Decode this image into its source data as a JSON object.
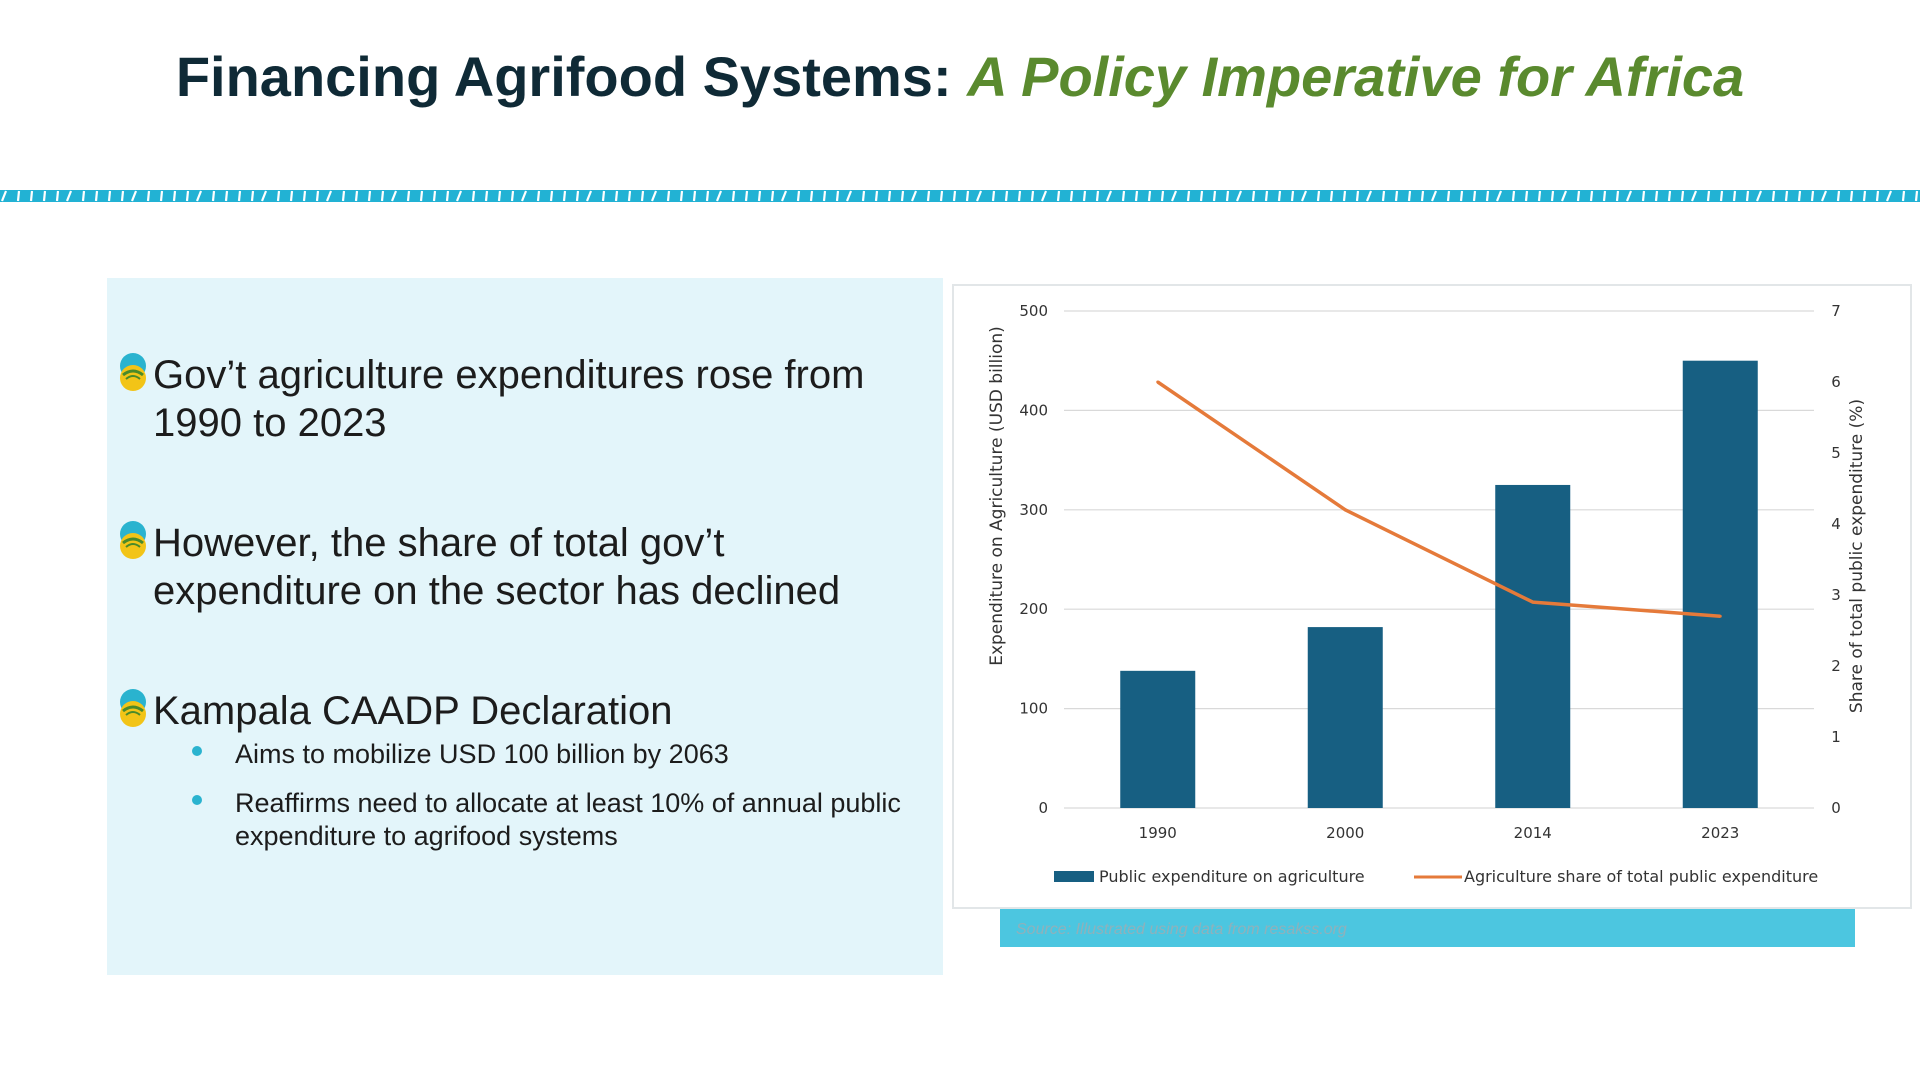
{
  "header": {
    "title_main": "Financing Agrifood Systems:",
    "title_accent": "A Policy Imperative for Africa"
  },
  "colors": {
    "title": "#0f2a36",
    "accent": "#5a8a2e",
    "band": "#22b2d4",
    "panel": "#e3f5fa",
    "bar": "#175f82",
    "line": "#e57a3a",
    "source_bar": "#4cc6e0"
  },
  "icons": {
    "bullet": "leaf-sun-icon",
    "sub_bullet": "dot-icon"
  },
  "bullets": [
    {
      "text": "Gov’t agriculture expenditures rose from 1990 to 2023"
    },
    {
      "text": "However, the share of total gov’t expenditure on the sector has declined"
    },
    {
      "text": "Kampala CAADP Declaration",
      "sub": [
        "Aims to mobilize USD 100 billion by 2063",
        "Reaffirms need to allocate at least 10% of annual public expenditure to agrifood systems"
      ]
    }
  ],
  "chart_data": {
    "type": "bar",
    "categories": [
      "1990",
      "2000",
      "2014",
      "2023"
    ],
    "series": [
      {
        "name": "Public expenditure on agriculture",
        "type": "bar",
        "axis": "left",
        "values": [
          138,
          182,
          325,
          450
        ]
      },
      {
        "name": "Agriculture share of total public expenditure",
        "type": "line",
        "axis": "right",
        "values": [
          6.0,
          4.2,
          2.9,
          2.7
        ]
      }
    ],
    "ylabel": "Expenditure on Agriculture (USD billion)",
    "y2label": "Share of total public expenditure (%)",
    "ylim": [
      0,
      500
    ],
    "y2lim": [
      0,
      7
    ],
    "yticks": [
      "0",
      "100",
      "200",
      "300",
      "400",
      "500"
    ],
    "y2ticks": [
      "0",
      "1",
      "2",
      "3",
      "4",
      "5",
      "6",
      "7"
    ],
    "grid": true,
    "legend": "bottom"
  },
  "source": "Source: Illustrated using data from resakss.org"
}
